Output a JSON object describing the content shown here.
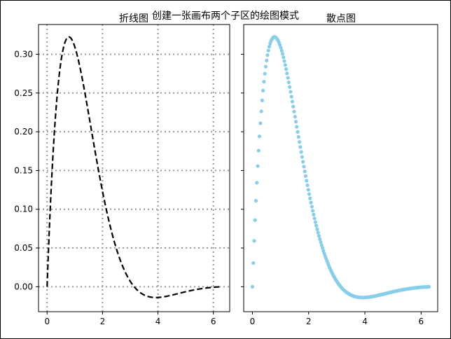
{
  "figure": {
    "suptitle": "创建一张画布两个子区的绘图模式"
  },
  "chart_data": [
    {
      "type": "line",
      "title": "折线图",
      "xlabel": "",
      "ylabel": "",
      "function": "sin(x)·exp(-x)",
      "x_range": [
        0,
        6.28
      ],
      "xlim": [
        -0.31,
        6.59
      ],
      "ylim": [
        -0.0322,
        0.3384
      ],
      "xticks": [
        0,
        2,
        4,
        6
      ],
      "xtick_labels": [
        "0",
        "2",
        "4",
        "6"
      ],
      "yticks": [
        0.0,
        0.05,
        0.1,
        0.15,
        0.2,
        0.25,
        0.3
      ],
      "ytick_labels": [
        "0.00",
        "0.05",
        "0.10",
        "0.15",
        "0.20",
        "0.25",
        "0.30"
      ],
      "grid": true,
      "grid_style": "dotted",
      "line_style": "dashed",
      "color": "#000000",
      "sample_points": [
        {
          "x": 0,
          "y": 0
        },
        {
          "x": 0.25,
          "y": 0.193
        },
        {
          "x": 0.5,
          "y": 0.291
        },
        {
          "x": 0.785,
          "y": 0.322
        },
        {
          "x": 1.0,
          "y": 0.31
        },
        {
          "x": 1.5,
          "y": 0.223
        },
        {
          "x": 2.0,
          "y": 0.123
        },
        {
          "x": 2.5,
          "y": 0.049
        },
        {
          "x": 3.0,
          "y": 0.007
        },
        {
          "x": 3.5,
          "y": -0.011
        },
        {
          "x": 3.93,
          "y": -0.014
        },
        {
          "x": 4.5,
          "y": -0.011
        },
        {
          "x": 5.0,
          "y": -0.006
        },
        {
          "x": 5.5,
          "y": -0.003
        },
        {
          "x": 6.28,
          "y": 0.0
        }
      ]
    },
    {
      "type": "scatter",
      "title": "散点图",
      "xlabel": "",
      "ylabel": "",
      "function": "sin(x)·exp(-x)",
      "x_range": [
        0,
        6.28
      ],
      "n_points": 200,
      "xlim": [
        -0.31,
        6.59
      ],
      "ylim": [
        -0.0322,
        0.3384
      ],
      "xticks": [
        0,
        2,
        4,
        6
      ],
      "xtick_labels": [
        "0",
        "2",
        "4",
        "6"
      ],
      "shared_y": true,
      "grid": false,
      "color": "#87ceeb"
    }
  ]
}
